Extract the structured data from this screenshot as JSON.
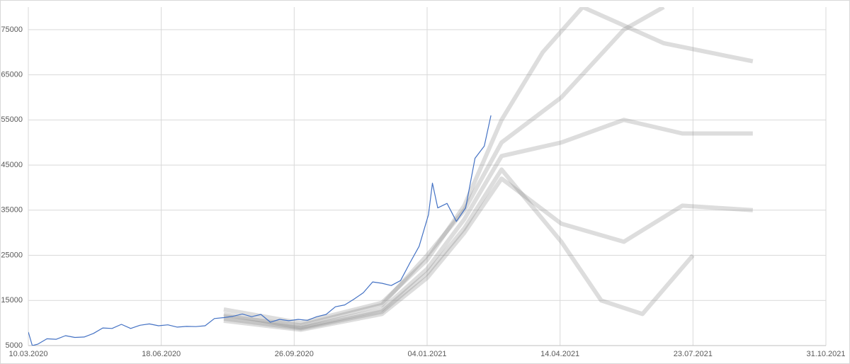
{
  "chart_data": {
    "type": "line",
    "xlim": [
      "2020-03-10",
      "2021-10-31"
    ],
    "xticks": [
      {
        "value": "2020-03-10",
        "label": "10.03.2020"
      },
      {
        "value": "2020-06-18",
        "label": "18.06.2020"
      },
      {
        "value": "2020-09-26",
        "label": "26.09.2020"
      },
      {
        "value": "2021-01-04",
        "label": "04.01.2021"
      },
      {
        "value": "2021-04-14",
        "label": "14.04.2021"
      },
      {
        "value": "2021-07-23",
        "label": "23.07.2021"
      },
      {
        "value": "2021-10-31",
        "label": "31.10.2021"
      }
    ],
    "ylim": [
      5000,
      80000
    ],
    "yticks": [
      5000,
      15000,
      25000,
      35000,
      45000,
      55000,
      65000,
      75000
    ],
    "grid": true,
    "series": [
      {
        "color": "#777777",
        "x": [
          "2020-08-04",
          "2020-10-01",
          "2020-12-01",
          "2021-01-04",
          "2021-02-01",
          "2021-03-01",
          "2021-04-15",
          "2021-06-01",
          "2021-07-01"
        ],
        "values": [
          11500,
          9500,
          14000,
          25000,
          35000,
          50000,
          60000,
          75000,
          80000
        ]
      },
      {
        "color": "#777777",
        "x": [
          "2020-08-04",
          "2020-10-01",
          "2020-12-01",
          "2021-01-04",
          "2021-02-01",
          "2021-03-01",
          "2021-04-15",
          "2021-06-01",
          "2021-07-15",
          "2021-09-06"
        ],
        "values": [
          12000,
          9000,
          13000,
          22000,
          33000,
          47000,
          50000,
          55000,
          52000,
          52000
        ]
      },
      {
        "color": "#777777",
        "x": [
          "2020-08-04",
          "2020-10-01",
          "2020-12-01",
          "2021-01-04",
          "2021-02-01",
          "2021-03-01",
          "2021-04-15",
          "2021-06-01",
          "2021-07-15",
          "2021-09-06"
        ],
        "values": [
          10500,
          8500,
          12000,
          20000,
          30000,
          42000,
          32000,
          28000,
          36000,
          35000
        ]
      },
      {
        "color": "#777777",
        "x": [
          "2020-08-04",
          "2020-10-01",
          "2020-12-01",
          "2021-01-04",
          "2021-02-01",
          "2021-03-01",
          "2021-04-15",
          "2021-05-15",
          "2021-06-15",
          "2021-07-23"
        ],
        "values": [
          11000,
          8800,
          12500,
          21000,
          31000,
          44000,
          28000,
          15000,
          12000,
          25000
        ]
      },
      {
        "color": "#777777",
        "x": [
          "2020-08-04",
          "2020-10-01",
          "2020-12-01",
          "2021-01-04",
          "2021-02-01",
          "2021-03-01",
          "2021-04-01",
          "2021-05-01",
          "2021-07-01",
          "2021-09-06"
        ],
        "values": [
          13000,
          10000,
          14500,
          24000,
          36000,
          55000,
          70000,
          80000,
          72000,
          68000
        ]
      },
      {
        "color": "#4472c4",
        "x": [
          "2020-03-10",
          "2020-03-13",
          "2020-03-17",
          "2020-03-24",
          "2020-03-31",
          "2020-04-07",
          "2020-04-14",
          "2020-04-21",
          "2020-04-28",
          "2020-05-05",
          "2020-05-12",
          "2020-05-19",
          "2020-05-26",
          "2020-06-02",
          "2020-06-09",
          "2020-06-16",
          "2020-06-23",
          "2020-06-30",
          "2020-07-07",
          "2020-07-14",
          "2020-07-21",
          "2020-07-28",
          "2020-08-04",
          "2020-08-11",
          "2020-08-18",
          "2020-08-25",
          "2020-09-01",
          "2020-09-08",
          "2020-09-15",
          "2020-09-22",
          "2020-09-29",
          "2020-10-06",
          "2020-10-13",
          "2020-10-20",
          "2020-10-27",
          "2020-11-03",
          "2020-11-10",
          "2020-11-17",
          "2020-11-24",
          "2020-12-01",
          "2020-12-08",
          "2020-12-15",
          "2020-12-22",
          "2020-12-29",
          "2021-01-05",
          "2021-01-08",
          "2021-01-12",
          "2021-01-19",
          "2021-01-26",
          "2021-02-02",
          "2021-02-09",
          "2021-02-16",
          "2021-02-21"
        ],
        "values": [
          8000,
          5000,
          5300,
          6500,
          6400,
          7200,
          6800,
          6900,
          7700,
          8900,
          8800,
          9700,
          8800,
          9500,
          9800,
          9400,
          9600,
          9100,
          9250,
          9200,
          9400,
          11000,
          11200,
          11500,
          12000,
          11400,
          11900,
          10200,
          10800,
          10500,
          10800,
          10600,
          11400,
          11900,
          13600,
          14000,
          15300,
          16700,
          19100,
          18800,
          18300,
          19400,
          23300,
          27000,
          34000,
          41000,
          35500,
          36500,
          32500,
          35500,
          46500,
          49200,
          56000
        ]
      }
    ]
  }
}
